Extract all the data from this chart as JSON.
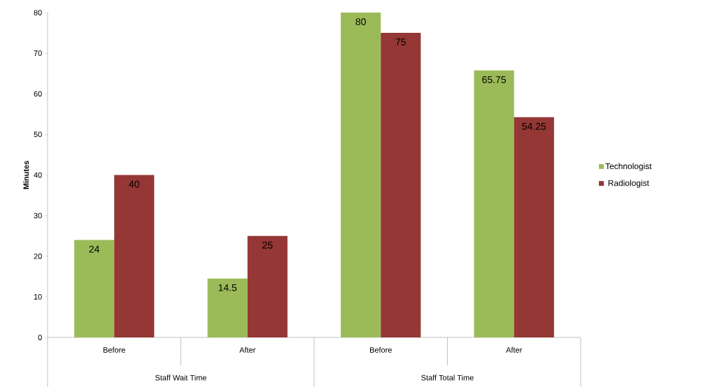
{
  "chart_data": {
    "type": "bar",
    "ylabel": "Minutes",
    "categories": [
      "Before",
      "After",
      "Before",
      "After"
    ],
    "series": [
      {
        "name": "Technologist",
        "color": "#9bbb59",
        "values": [
          24,
          14.5,
          80,
          65.75
        ]
      },
      {
        "name": "Radiologist",
        "color": "#953735",
        "values": [
          40,
          25,
          75,
          54.25
        ]
      }
    ],
    "annotations": [
      "Staff Wait Time",
      "Staff Total Time"
    ],
    "ylim": [
      0,
      80
    ],
    "yticks": [
      0,
      10,
      20,
      30,
      40,
      50,
      60,
      70,
      80
    ],
    "data_labels": true,
    "legend": "right",
    "grid": false
  }
}
